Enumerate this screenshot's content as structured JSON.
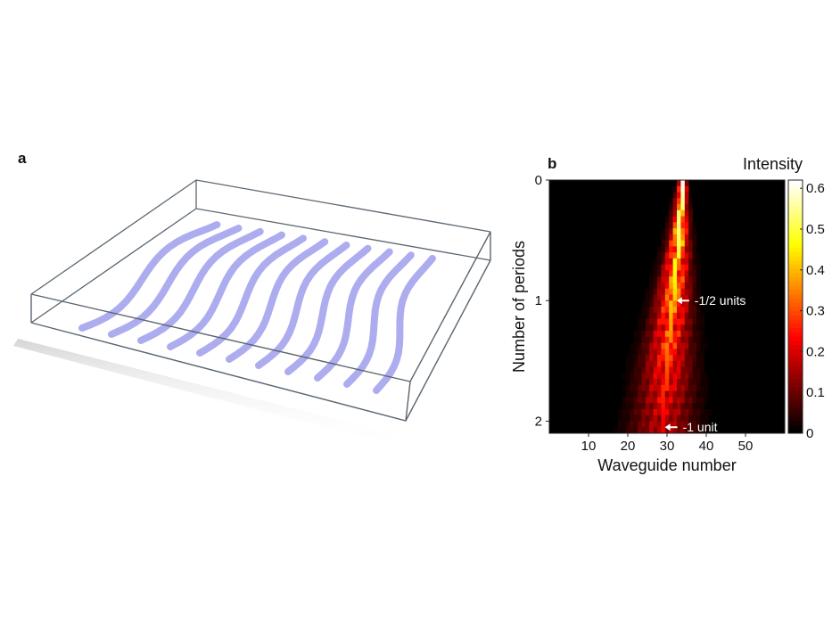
{
  "panels": {
    "a": "a",
    "b": "b"
  },
  "schematic": {
    "waveguide_color": "#a9a8ee",
    "box_color": "#5a6670"
  },
  "chart_data": {
    "type": "heatmap",
    "xlabel": "Waveguide number",
    "ylabel": "Number of periods",
    "colorbar_label": "Intensity",
    "xlim": [
      0,
      60
    ],
    "ylim": [
      0,
      2.1
    ],
    "x_ticks": [
      10,
      20,
      30,
      40,
      50
    ],
    "y_ticks": [
      0,
      1,
      2
    ],
    "colorbar_ticks": [
      0,
      0.1,
      0.2,
      0.3,
      0.4,
      0.5,
      0.6
    ],
    "colorbar_range": [
      0,
      0.62
    ],
    "colormap": "hot",
    "center_path": [
      {
        "period": 0,
        "waveguide": 34
      },
      {
        "period": 0.5,
        "waveguide": 33
      },
      {
        "period": 1,
        "waveguide": 31.5
      },
      {
        "period": 1.5,
        "waveguide": 30
      },
      {
        "period": 2,
        "waveguide": 29
      }
    ],
    "annotations": [
      {
        "text": "-1/2 units",
        "period": 1,
        "waveguide": 32
      },
      {
        "text": "-1 unit",
        "period": 2.05,
        "waveguide": 29
      }
    ]
  }
}
